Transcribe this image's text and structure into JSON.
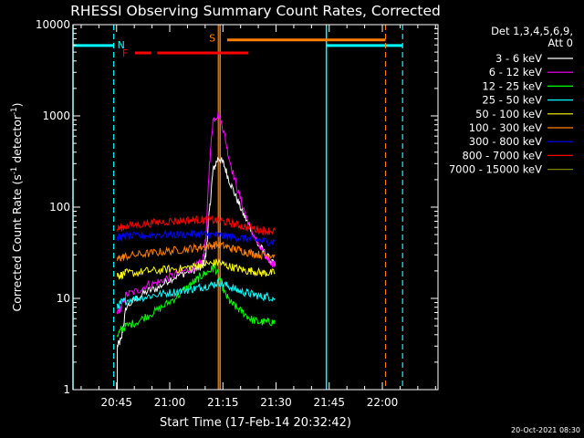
{
  "chart_data": {
    "type": "line",
    "title": "RHESSI Observing Summary Count Rates, Corrected",
    "xlabel": "Start Time (17-Feb-14 20:32:42)",
    "ylabel_main": "Corrected Count Rate (s",
    "ylabel_sup1": "-1",
    "ylabel_mid": " detector",
    "ylabel_sup2": "-1",
    "ylabel_end": ")",
    "yscale": "log",
    "xlim_minutes": [
      0,
      103
    ],
    "ylim": [
      1,
      10000
    ],
    "xticks": [
      {
        "minutes": 12.3,
        "label": "20:45"
      },
      {
        "minutes": 27.3,
        "label": "21:00"
      },
      {
        "minutes": 42.3,
        "label": "21:15"
      },
      {
        "minutes": 57.3,
        "label": "21:30"
      },
      {
        "minutes": 72.3,
        "label": "21:45"
      },
      {
        "minutes": 87.3,
        "label": "22:00"
      }
    ],
    "yticks": [
      {
        "value": 1,
        "label": "1"
      },
      {
        "value": 10,
        "label": "10"
      },
      {
        "value": 100,
        "label": "100"
      },
      {
        "value": 1000,
        "label": "1000"
      },
      {
        "value": 10000,
        "label": "10000"
      }
    ],
    "legend_header": [
      "Det 1,3,4,5,6,9,",
      "Att 0"
    ],
    "legend_placement": "right",
    "series": [
      {
        "name": "3 - 6 keV",
        "color": "#ffffff",
        "x": [
          12.5,
          13.6,
          15,
          18,
          21,
          24,
          27,
          30,
          33,
          35,
          36.5,
          37.5,
          38.5,
          39.5,
          41,
          42.5,
          44,
          46,
          48,
          50,
          52,
          54,
          56,
          57
        ],
        "y": [
          3,
          3.5,
          8,
          10,
          12,
          13,
          16,
          18,
          20,
          21,
          22,
          30,
          90,
          250,
          350,
          300,
          200,
          130,
          85,
          60,
          40,
          32,
          25,
          23
        ]
      },
      {
        "name": "6 - 12 keV",
        "color": "#ff00ff",
        "x": [
          12.5,
          13.6,
          15,
          18,
          21,
          24,
          27,
          30,
          33,
          35,
          36.5,
          37.5,
          38.5,
          39.5,
          41,
          42.5,
          44,
          46,
          48,
          50,
          52,
          54,
          56,
          57
        ],
        "y": [
          7,
          8,
          11,
          12,
          14,
          15,
          17,
          19,
          21,
          23,
          25,
          45,
          300,
          900,
          1050,
          700,
          350,
          180,
          100,
          60,
          40,
          30,
          25,
          23
        ]
      },
      {
        "name": "12 - 25 keV",
        "color": "#00ff00",
        "x": [
          12.5,
          13.6,
          15,
          18,
          21,
          24,
          27,
          30,
          33,
          35,
          36.5,
          38.5,
          40,
          41.5,
          43,
          44.5,
          46,
          48,
          50,
          52,
          54,
          56,
          57
        ],
        "y": [
          4,
          4.5,
          5,
          5.5,
          6.5,
          7.5,
          9,
          11,
          14,
          16,
          18,
          20,
          22,
          16,
          11,
          9,
          8,
          7,
          6,
          5.5,
          5.5,
          5.5,
          5.5
        ]
      },
      {
        "name": "25 - 50 keV",
        "color": "#00ffff",
        "x": [
          12.5,
          13.6,
          15,
          18,
          21,
          24,
          27,
          30,
          33,
          35,
          37,
          39,
          41,
          43,
          45,
          47,
          49,
          51,
          53,
          55,
          57
        ],
        "y": [
          8,
          9,
          9.5,
          10,
          10.5,
          11,
          11.5,
          12,
          12.5,
          13,
          13.5,
          14,
          15,
          14,
          13,
          12,
          11.5,
          11,
          10.5,
          10.5,
          10
        ]
      },
      {
        "name": "50 - 100 keV",
        "color": "#ffff00",
        "x": [
          12.5,
          13.6,
          15,
          18,
          21,
          24,
          27,
          30,
          33,
          35,
          37,
          39,
          41,
          43,
          45,
          47,
          49,
          51,
          53,
          55,
          57
        ],
        "y": [
          18,
          18,
          19,
          19,
          20,
          20,
          21,
          21,
          22,
          23,
          24,
          24,
          25,
          23,
          22,
          21,
          20,
          20,
          19,
          19,
          19
        ]
      },
      {
        "name": "100 - 300 keV",
        "color": "#ff8000",
        "x": [
          12.5,
          13.6,
          15,
          18,
          21,
          24,
          27,
          30,
          33,
          35,
          37,
          39,
          41,
          43,
          45,
          47,
          49,
          51,
          53,
          55,
          57
        ],
        "y": [
          27,
          28,
          29,
          30,
          31,
          32,
          33,
          34,
          35,
          36,
          37,
          38,
          39,
          37,
          35,
          34,
          32,
          31,
          30,
          30,
          30
        ]
      },
      {
        "name": "300 - 800 keV",
        "color": "#0000ff",
        "x": [
          12.5,
          13.6,
          15,
          18,
          21,
          24,
          27,
          30,
          33,
          35,
          37,
          39,
          41,
          43,
          45,
          47,
          49,
          51,
          53,
          55,
          57
        ],
        "y": [
          46,
          47,
          48,
          48,
          49,
          50,
          50,
          50,
          51,
          51,
          50,
          50,
          49,
          48,
          47,
          46,
          45,
          44,
          43,
          42,
          42
        ]
      },
      {
        "name": "800 - 7000 keV",
        "color": "#ff0000",
        "x": [
          12.5,
          13.6,
          15,
          18,
          21,
          24,
          27,
          30,
          33,
          35,
          37,
          39,
          41,
          43,
          45,
          47,
          49,
          51,
          53,
          55,
          57
        ],
        "y": [
          58,
          60,
          62,
          64,
          66,
          68,
          70,
          71,
          72,
          73,
          73,
          72,
          71,
          69,
          66,
          63,
          60,
          58,
          56,
          55,
          55
        ]
      },
      {
        "name": "7000 - 15000 keV",
        "color": "#808000",
        "x": [],
        "y": []
      }
    ],
    "annotations": {
      "night_label": "N",
      "flare_label": "F",
      "saa_label": "S",
      "night_intervals": [
        [
          0,
          11.5
        ],
        [
          71.5,
          93
        ]
      ],
      "night_dashed_lines": [
        11.5,
        93
      ],
      "night_solid_lines": [
        0,
        71.5
      ],
      "flare_intervals": [
        [
          17.5,
          22
        ],
        [
          23.8,
          49.5
        ]
      ],
      "saa_interval": [
        41.5,
        88.2
      ],
      "saa_solid_line": 41.5,
      "saa_dashed_line": 88.2,
      "saa_bar_start": 43.5,
      "orange_vertical_line": 41.0,
      "night_level": 5900,
      "flare_level": 4900,
      "saa_level": 6800
    }
  },
  "footer": {
    "date_stamp": "20-Oct-2021 08:30"
  }
}
